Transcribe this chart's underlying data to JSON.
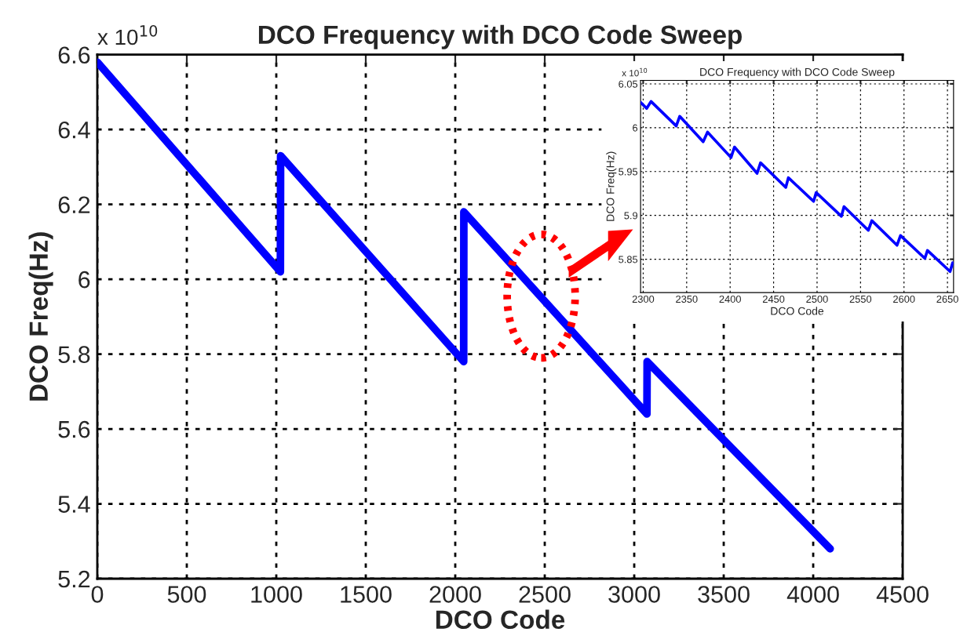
{
  "chart_data": [
    {
      "type": "line",
      "title": "DCO Frequency with DCO Code Sweep",
      "xlabel": "DCO Code",
      "ylabel": "DCO Freq(Hz)",
      "annotations": [
        "x 10$^{10}$"
      ],
      "series": [
        {
          "color": "#0000ff",
          "x": [
            0,
            1023,
            1024,
            2047,
            2048,
            3071,
            3072,
            4095
          ],
          "values": [
            6.58,
            6.02,
            6.33,
            5.78,
            6.18,
            5.64,
            5.78,
            5.28
          ]
        }
      ],
      "xlim": [
        0,
        4500
      ],
      "ylim": [
        5.2,
        6.6
      ],
      "xticks": [
        0,
        500,
        1000,
        1500,
        2000,
        2500,
        3000,
        3500,
        4000,
        4500
      ],
      "yticks": [
        5.2,
        5.4,
        5.6,
        5.8,
        6,
        6.2,
        6.4,
        6.6
      ],
      "grid": true,
      "line_style": "solid"
    },
    {
      "type": "line",
      "title": "DCO Frequency with DCO Code Sweep",
      "xlabel": "DCO Code",
      "ylabel": "DCO Freq(Hz)",
      "annotations": [
        "x 10$^{10}$"
      ],
      "series": [
        {
          "color": "#0000ff",
          "x": [
            2297,
            2304,
            2309,
            2338,
            2342,
            2369,
            2374,
            2401,
            2405,
            2431,
            2435,
            2464,
            2467,
            2496,
            2499,
            2528,
            2531,
            2559,
            2563,
            2592,
            2596,
            2624,
            2627,
            2653,
            2656
          ],
          "values": [
            6.029,
            6.022,
            6.03,
            6.002,
            6.013,
            5.984,
            5.995,
            5.966,
            5.978,
            5.948,
            5.96,
            5.932,
            5.943,
            5.916,
            5.926,
            5.899,
            5.91,
            5.883,
            5.894,
            5.866,
            5.877,
            5.851,
            5.86,
            5.836,
            5.846
          ]
        }
      ],
      "xlim": [
        2297,
        2657
      ],
      "ylim": [
        5.812,
        6.054
      ],
      "xticks": [
        2300,
        2350,
        2400,
        2450,
        2500,
        2550,
        2600,
        2650
      ],
      "yticks": [
        5.85,
        5.9,
        5.95,
        6,
        6.05
      ],
      "grid": true,
      "line_style": "solid"
    }
  ]
}
